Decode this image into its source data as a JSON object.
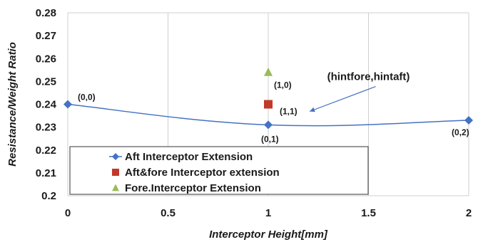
{
  "chart_data": {
    "type": "line",
    "xlabel": "Interceptor Height[mm]",
    "ylabel": "Resistance/Weight Ratio",
    "xlim": [
      0,
      2
    ],
    "ylim": [
      0.2,
      0.28
    ],
    "x_ticks": [
      "0",
      "0.5",
      "1",
      "1.5",
      "2"
    ],
    "y_ticks": [
      "0.2",
      "0.21",
      "0.22",
      "0.23",
      "0.24",
      "0.25",
      "0.26",
      "0.27",
      "0.28"
    ],
    "grid": "vertical",
    "legend_position": "bottom-left",
    "series": [
      {
        "name": "Aft Interceptor Extension",
        "color": "#4472c4",
        "marker": "diamond",
        "x": [
          0,
          1,
          2
        ],
        "y": [
          0.24,
          0.231,
          0.233
        ]
      },
      {
        "name": "Aft&fore Interceptor extension",
        "color": "#c0392b",
        "marker": "square",
        "x": [
          1
        ],
        "y": [
          0.24
        ]
      },
      {
        "name": "Fore.Interceptor Extension",
        "color": "#9bbb59",
        "marker": "triangle",
        "x": [
          1
        ],
        "y": [
          0.254
        ]
      }
    ],
    "annotations": [
      {
        "text": "(0,0)",
        "x": 0,
        "y": 0.24
      },
      {
        "text": "(0,1)",
        "x": 1,
        "y": 0.231
      },
      {
        "text": "(0,2)",
        "x": 2,
        "y": 0.233
      },
      {
        "text": "(1,1)",
        "x": 1,
        "y": 0.24
      },
      {
        "text": "(1,0)",
        "x": 1,
        "y": 0.254
      },
      {
        "text": "(hintfore,hintaft)",
        "x": 1.5,
        "y": 0.249
      }
    ]
  }
}
